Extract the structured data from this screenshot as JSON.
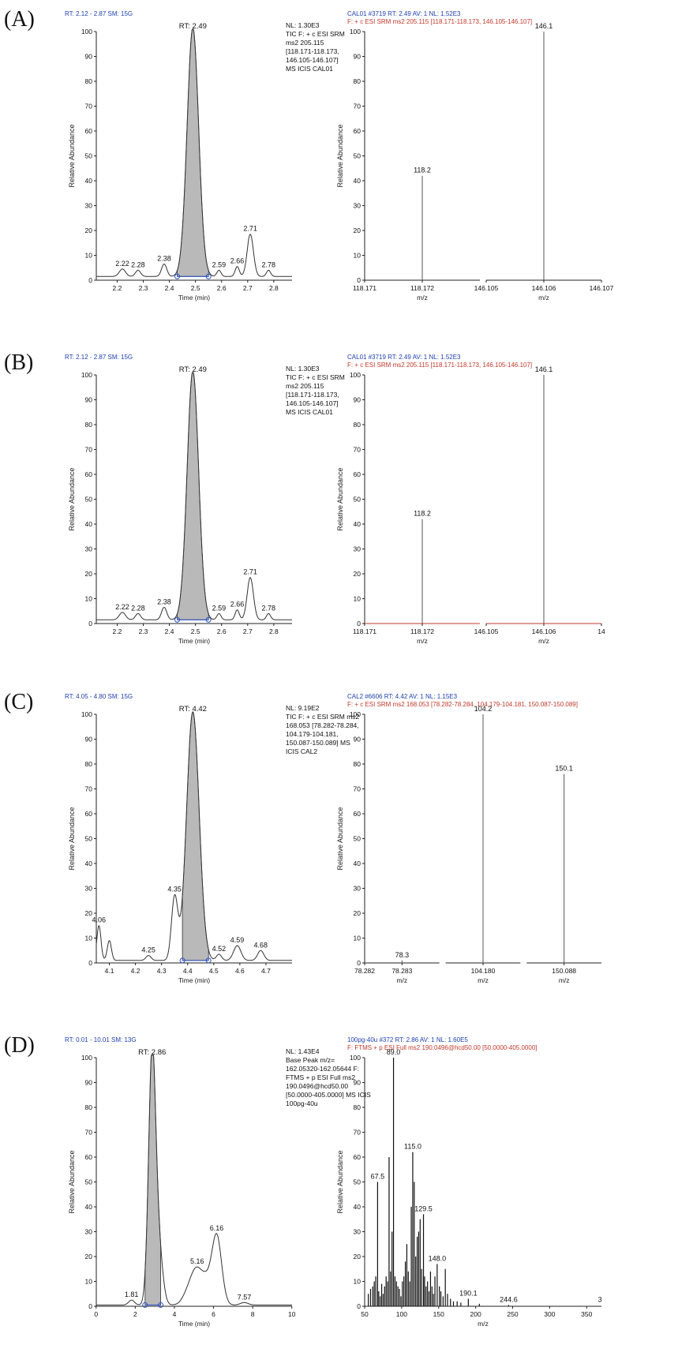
{
  "panels": [
    {
      "letter": "(A)",
      "chrom": {
        "header": "RT: 2.12 - 2.87  SM: 15G",
        "info": [
          "NL: 1.30E3",
          "TIC F: + c ESI SRM",
          "ms2 205.115",
          "[118.171-118.173,",
          "146.105-146.107]",
          "MS  ICIS CAL01"
        ],
        "rt_label": "RT: 2.49",
        "ylabel": "Relative Abundance",
        "xlabel": "Time (min)",
        "xlim": [
          2.12,
          2.87
        ],
        "ylim": [
          0,
          100
        ],
        "xticks": [
          "2.2",
          "2.3",
          "2.4",
          "2.5",
          "2.6",
          "2.7",
          "2.8"
        ],
        "yticks": [
          "0",
          "10",
          "20",
          "30",
          "40",
          "50",
          "60",
          "70",
          "80",
          "90",
          "100"
        ],
        "peaks": [
          {
            "rt": 2.22,
            "h": 3,
            "w": 0.012,
            "label": "2.22"
          },
          {
            "rt": 2.28,
            "h": 2.5,
            "w": 0.01,
            "label": "2.28"
          },
          {
            "rt": 2.38,
            "h": 5,
            "w": 0.01,
            "label": "2.38"
          },
          {
            "rt": 2.49,
            "h": 100,
            "w": 0.022,
            "label": ""
          },
          {
            "rt": 2.59,
            "h": 2.5,
            "w": 0.008,
            "label": "2.59"
          },
          {
            "rt": 2.66,
            "h": 4,
            "w": 0.008,
            "label": "2.66"
          },
          {
            "rt": 2.71,
            "h": 17,
            "w": 0.012,
            "label": "2.71"
          },
          {
            "rt": 2.78,
            "h": 2.5,
            "w": 0.008,
            "label": "2.78"
          }
        ],
        "baseline": 1.5,
        "shade": [
          2.43,
          2.55
        ]
      },
      "spec": {
        "header1": "CAL01 #3719  RT: 2.49  AV: 1  NL: 1.52E3",
        "header2": "F: + c ESI SRM ms2 205.115 [118.171-118.173, 146.105-146.107]",
        "ylabel": "Relative Abundance",
        "xlabel": "m/z",
        "ylim": [
          0,
          100
        ],
        "yticks": [
          "0",
          "10",
          "20",
          "30",
          "40",
          "50",
          "60",
          "70",
          "80",
          "90",
          "100"
        ],
        "segments": [
          {
            "range": [
              118.171,
              118.173
            ],
            "ticks": [
              "118.171",
              "118.172"
            ],
            "peaks": [
              {
                "mz": 118.172,
                "h": 42,
                "label": "118.2"
              }
            ]
          },
          {
            "range": [
              146.105,
              146.107
            ],
            "ticks": [
              "146.105",
              "146.106",
              "146.107"
            ],
            "peaks": [
              {
                "mz": 146.106,
                "h": 100,
                "label": "146.1"
              }
            ]
          }
        ]
      }
    },
    {
      "letter": "(B)",
      "chrom": {
        "header": "RT: 2.12 - 2.87  SM: 15G",
        "info": [
          "NL: 1.30E3",
          "TIC F: + c ESI SRM",
          "ms2 205.115",
          "[118.171-118.173,",
          "146.105-146.107]",
          "MS  ICIS CAL01"
        ],
        "rt_label": "RT: 2.49",
        "ylabel": "Relative Abundance",
        "xlabel": "Time (min)",
        "xlim": [
          2.12,
          2.87
        ],
        "ylim": [
          0,
          100
        ],
        "xticks": [
          "2.2",
          "2.3",
          "2.4",
          "2.5",
          "2.6",
          "2.7",
          "2.8"
        ],
        "yticks": [
          "0",
          "10",
          "20",
          "30",
          "40",
          "50",
          "60",
          "70",
          "80",
          "90",
          "100"
        ],
        "peaks": [
          {
            "rt": 2.22,
            "h": 3,
            "w": 0.012,
            "label": "2.22"
          },
          {
            "rt": 2.28,
            "h": 2.5,
            "w": 0.01,
            "label": "2.28"
          },
          {
            "rt": 2.38,
            "h": 5,
            "w": 0.01,
            "label": "2.38"
          },
          {
            "rt": 2.49,
            "h": 100,
            "w": 0.022,
            "label": ""
          },
          {
            "rt": 2.59,
            "h": 2.5,
            "w": 0.008,
            "label": "2.59"
          },
          {
            "rt": 2.66,
            "h": 4,
            "w": 0.008,
            "label": "2.66"
          },
          {
            "rt": 2.71,
            "h": 17,
            "w": 0.012,
            "label": "2.71"
          },
          {
            "rt": 2.78,
            "h": 2.5,
            "w": 0.008,
            "label": "2.78"
          }
        ],
        "baseline": 1.5,
        "shade": [
          2.43,
          2.55
        ]
      },
      "spec": {
        "header1": "CAL01 #3719  RT: 2.49  AV: 1  NL: 1.52E3",
        "header2": "F: + c ESI SRM ms2 205.115 [118.171-118.173, 146.105-146.107]",
        "ylabel": "Relative Abundance",
        "xlabel": "m/z",
        "ylim": [
          0,
          100
        ],
        "yticks": [
          "0",
          "10",
          "20",
          "30",
          "40",
          "50",
          "60",
          "70",
          "80",
          "90",
          "100"
        ],
        "segments": [
          {
            "range": [
              118.171,
              118.173
            ],
            "ticks": [
              "118.171",
              "118.172"
            ],
            "peaks": [
              {
                "mz": 118.172,
                "h": 42,
                "label": "118.2"
              }
            ]
          },
          {
            "range": [
              146.105,
              146.107
            ],
            "ticks": [
              "146.105",
              "146.106",
              "14"
            ],
            "peaks": [
              {
                "mz": 146.106,
                "h": 100,
                "label": "146.1"
              }
            ]
          }
        ]
      }
    },
    {
      "letter": "(C)",
      "chrom": {
        "header": "RT: 4.05 - 4.80  SM: 15G",
        "info": [
          "NL: 9.19E2",
          "TIC F: + c ESI SRM ms2",
          "168.053 [78.282-78.284,",
          "104.179-104.181,",
          "150.087-150.089]  MS",
          "ICIS CAL2"
        ],
        "rt_label": "RT: 4.42",
        "ylabel": "Relative Abundance",
        "xlabel": "Time (min)",
        "xlim": [
          4.05,
          4.8
        ],
        "ylim": [
          0,
          100
        ],
        "xticks": [
          "4.1",
          "4.2",
          "4.3",
          "4.4",
          "4.5",
          "4.6",
          "4.7"
        ],
        "yticks": [
          "0",
          "10",
          "20",
          "30",
          "40",
          "50",
          "60",
          "70",
          "80",
          "90",
          "100"
        ],
        "peaks": [
          {
            "rt": 4.06,
            "h": 14,
            "w": 0.008,
            "label": "4.06"
          },
          {
            "rt": 4.1,
            "h": 8,
            "w": 0.008,
            "label": ""
          },
          {
            "rt": 4.25,
            "h": 2,
            "w": 0.01,
            "label": "4.25"
          },
          {
            "rt": 4.35,
            "h": 25,
            "w": 0.012,
            "label": "4.35"
          },
          {
            "rt": 4.42,
            "h": 100,
            "w": 0.024,
            "label": ""
          },
          {
            "rt": 4.52,
            "h": 2.5,
            "w": 0.01,
            "label": "4.52"
          },
          {
            "rt": 4.59,
            "h": 6,
            "w": 0.014,
            "label": "4.59"
          },
          {
            "rt": 4.68,
            "h": 4,
            "w": 0.012,
            "label": "4.68"
          }
        ],
        "baseline": 1,
        "shade": [
          4.38,
          4.48
        ]
      },
      "spec": {
        "header1": "CAL2 #6606  RT: 4.42  AV: 1  NL: 1.15E3",
        "header2": "F: + c ESI SRM ms2 168.053 [78.282-78.284, 104.179-104.181, 150.087-150.089]",
        "ylabel": "Relative Abundance",
        "xlabel": "m/z",
        "ylim": [
          0,
          100
        ],
        "yticks": [
          "0",
          "10",
          "20",
          "30",
          "40",
          "50",
          "60",
          "70",
          "80",
          "90",
          "100"
        ],
        "segments": [
          {
            "range": [
              78.282,
              78.284
            ],
            "ticks": [
              "78.282",
              "78.283"
            ],
            "peaks": [
              {
                "mz": 78.283,
                "h": 1,
                "label": "78.3"
              }
            ]
          },
          {
            "range": [
              104.179,
              104.181
            ],
            "ticks": [
              "104.180"
            ],
            "peaks": [
              {
                "mz": 104.18,
                "h": 100,
                "label": "104.2"
              }
            ]
          },
          {
            "range": [
              150.087,
              150.089
            ],
            "ticks": [
              "150.088"
            ],
            "peaks": [
              {
                "mz": 150.088,
                "h": 76,
                "label": "150.1"
              }
            ]
          }
        ]
      }
    },
    {
      "letter": "(D)",
      "chrom": {
        "header": "RT: 0.01 - 10.01  SM: 13G",
        "info": [
          "NL: 1.43E4",
          "Base Peak m/z=",
          "162.05320-162.05644 F:",
          "FTMS + p ESI Full ms2",
          "190.0496@hcd50.00",
          "[50.0000-405.0000]  MS  ICIS",
          "100pg-40u"
        ],
        "rt_label": "RT: 2.86",
        "ylabel": "Relative Abundance",
        "xlabel": "Time (min)",
        "xlim": [
          0.01,
          10.01
        ],
        "ylim": [
          0,
          100
        ],
        "xticks": [
          "0",
          "2",
          "4",
          "6",
          "8",
          "10"
        ],
        "yticks": [
          "0",
          "10",
          "20",
          "30",
          "40",
          "50",
          "60",
          "70",
          "80",
          "90",
          "100"
        ],
        "peaks": [
          {
            "rt": 1.81,
            "h": 2,
            "w": 0.15,
            "label": "1.81"
          },
          {
            "rt": 2.86,
            "h": 100,
            "w": 0.18,
            "label": ""
          },
          {
            "rt": 3.2,
            "h": 22,
            "w": 0.2,
            "label": ""
          },
          {
            "rt": 4.8,
            "h": 7,
            "w": 0.3,
            "label": ""
          },
          {
            "rt": 5.16,
            "h": 10,
            "w": 0.25,
            "label": "5.16"
          },
          {
            "rt": 5.6,
            "h": 9,
            "w": 0.25,
            "label": ""
          },
          {
            "rt": 6.16,
            "h": 28,
            "w": 0.25,
            "label": "6.16"
          },
          {
            "rt": 7.57,
            "h": 1,
            "w": 0.2,
            "label": "7.57"
          }
        ],
        "baseline": 0.5,
        "shade": [
          2.5,
          3.3
        ]
      },
      "spec": {
        "header1": "100pg-40u #372   RT: 2.86   AV: 1   NL: 1.60E5",
        "header2": "F: FTMS + p ESI Full ms2 190.0496@hcd50.00 [50.0000-405.0000]",
        "ylabel": "Relative Abundance",
        "xlabel": "m/z",
        "xlim": [
          50,
          370
        ],
        "ylim": [
          0,
          100
        ],
        "xticks": [
          "50",
          "100",
          "150",
          "200",
          "250",
          "300",
          "350"
        ],
        "yticks": [
          "0",
          "10",
          "20",
          "30",
          "40",
          "50",
          "60",
          "70",
          "80",
          "90",
          "100"
        ],
        "labels": [
          {
            "mz": 67.5,
            "h": 50,
            "label": "67.5"
          },
          {
            "mz": 89.0,
            "h": 100,
            "label": "89.0"
          },
          {
            "mz": 115.0,
            "h": 62,
            "label": "115.0"
          },
          {
            "mz": 129.5,
            "h": 37,
            "label": "129.5"
          },
          {
            "mz": 148.0,
            "h": 17,
            "label": "148.0"
          },
          {
            "mz": 190.1,
            "h": 3,
            "label": "190.1"
          },
          {
            "mz": 244.6,
            "h": 0.5,
            "label": "244.6"
          },
          {
            "mz": 368,
            "h": 0.5,
            "label": "3"
          }
        ],
        "sticks": [
          [
            55,
            5
          ],
          [
            58,
            7
          ],
          [
            61,
            8
          ],
          [
            63,
            10
          ],
          [
            65,
            12
          ],
          [
            67.5,
            50
          ],
          [
            69,
            6
          ],
          [
            71,
            4
          ],
          [
            73,
            9
          ],
          [
            75,
            5
          ],
          [
            77,
            8
          ],
          [
            79,
            12
          ],
          [
            81,
            10
          ],
          [
            83,
            60
          ],
          [
            85,
            14
          ],
          [
            87,
            30
          ],
          [
            89,
            100
          ],
          [
            91,
            12
          ],
          [
            93,
            10
          ],
          [
            95,
            8
          ],
          [
            97,
            7
          ],
          [
            99,
            4
          ],
          [
            101,
            10
          ],
          [
            103,
            12
          ],
          [
            105,
            18
          ],
          [
            107,
            25
          ],
          [
            109,
            14
          ],
          [
            111,
            10
          ],
          [
            113,
            40
          ],
          [
            115,
            62
          ],
          [
            117,
            50
          ],
          [
            119,
            20
          ],
          [
            121,
            28
          ],
          [
            123,
            30
          ],
          [
            125,
            35
          ],
          [
            127,
            15
          ],
          [
            129.5,
            37
          ],
          [
            131,
            12
          ],
          [
            133,
            8
          ],
          [
            135,
            10
          ],
          [
            137,
            6
          ],
          [
            139,
            14
          ],
          [
            141,
            8
          ],
          [
            143,
            5
          ],
          [
            145,
            12
          ],
          [
            148,
            17
          ],
          [
            151,
            8
          ],
          [
            153,
            6
          ],
          [
            156,
            4
          ],
          [
            159,
            15
          ],
          [
            162,
            5
          ],
          [
            166,
            3
          ],
          [
            170,
            2
          ],
          [
            175,
            2
          ],
          [
            180,
            1.5
          ],
          [
            190.1,
            3
          ],
          [
            205,
            1
          ],
          [
            244.6,
            0.5
          ]
        ]
      }
    }
  ]
}
